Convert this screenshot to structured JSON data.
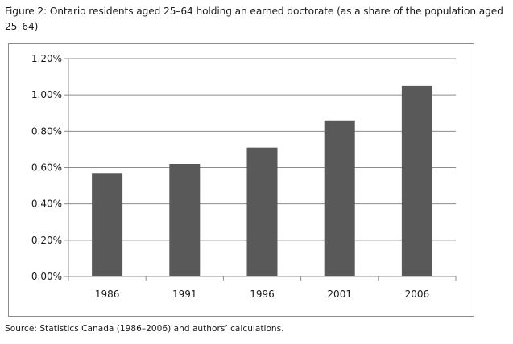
{
  "figure": {
    "title": "Figure 2: Ontario residents aged 25–64 holding an earned doctorate (as a share of the population aged 25–64)",
    "source": "Source: Statistics Canada (1986–2006) and authors’ calculations."
  },
  "chart_data": {
    "type": "bar",
    "title": "",
    "xlabel": "",
    "ylabel": "",
    "categories": [
      "1986",
      "1991",
      "1996",
      "2001",
      "2006"
    ],
    "values": [
      0.57,
      0.62,
      0.71,
      0.86,
      1.05
    ],
    "ylim": [
      0,
      1.2
    ],
    "yticks": [
      0,
      0.2,
      0.4,
      0.6,
      0.8,
      1.0,
      1.2
    ],
    "ytick_labels": [
      "0.00%",
      "0.20%",
      "0.40%",
      "0.60%",
      "0.80%",
      "1.00%",
      "1.20%"
    ],
    "grid": true,
    "legend": "none",
    "colors": {
      "bar": "#595959",
      "grid": "#8c8c8c",
      "axis": "#8c8c8c"
    }
  }
}
